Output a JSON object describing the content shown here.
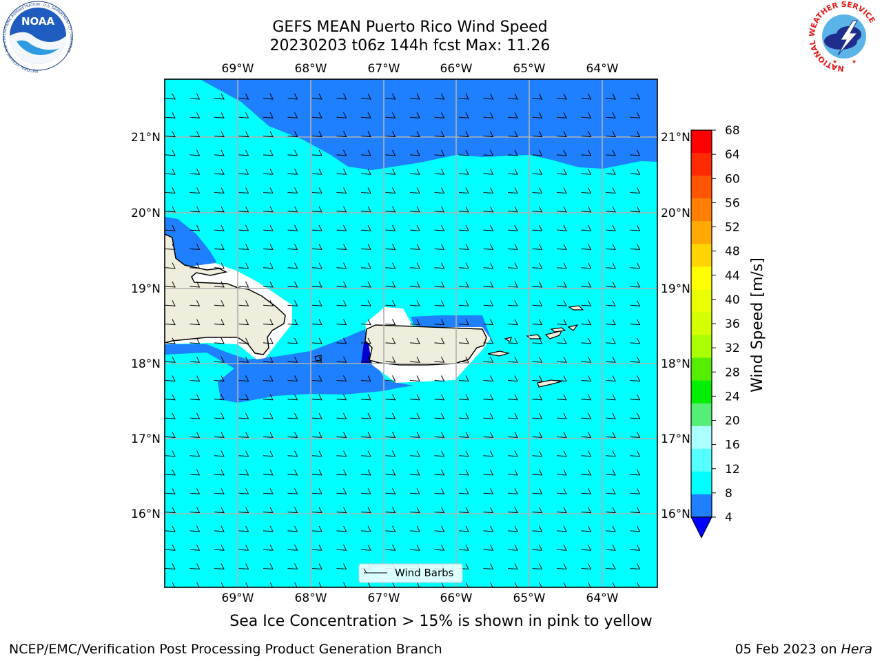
{
  "header": {
    "title_line1": "GEFS MEAN Puerto Rico Wind Speed",
    "title_line2": "20230203 t06z 144h fcst   Max: 11.26"
  },
  "logos": {
    "noaa_text": "NOAA",
    "noaa_ring_text": "NATIONAL OCEANIC AND ATMOSPHERIC ADMINISTRATION · U.S. DEPARTMENT OF COMMERCE",
    "nws_ring_text": "NATIONAL WEATHER SERVICE"
  },
  "map": {
    "lon_labels": [
      "69°W",
      "68°W",
      "67°W",
      "66°W",
      "65°W",
      "64°W"
    ],
    "lat_labels": [
      "21°N",
      "20°N",
      "19°N",
      "18°N",
      "17°N",
      "16°N"
    ],
    "legend_label": "Wind Barbs",
    "colors": {
      "ocean_light": "#00ffff",
      "ocean_dark": "#1e7fff",
      "deep_blue": "#0000d0",
      "land": "#efeddc",
      "masked": "#ffffff"
    }
  },
  "colorbar": {
    "label": "Wind Speed [m/s]",
    "ticks": [
      "68",
      "64",
      "60",
      "56",
      "52",
      "48",
      "44",
      "40",
      "36",
      "32",
      "28",
      "24",
      "20",
      "16",
      "12",
      "8",
      "4"
    ],
    "colors": [
      "#ff0000",
      "#ff2a00",
      "#ff5500",
      "#ff7f00",
      "#ffaa00",
      "#ffd400",
      "#ffff00",
      "#eaff00",
      "#d4ff00",
      "#aaff00",
      "#55ee00",
      "#00ee00",
      "#55ee77",
      "#aaffff",
      "#55ffff",
      "#00ffff",
      "#1e7fff"
    ],
    "under_color": "#0000ff"
  },
  "caption": "Sea Ice Concentration > 15% is shown in pink to yellow",
  "footer": {
    "left": "NCEP/EMC/Verification Post Processing Product Generation Branch",
    "right_prefix": "05 Feb 2023 on ",
    "right_host": "Hera"
  }
}
